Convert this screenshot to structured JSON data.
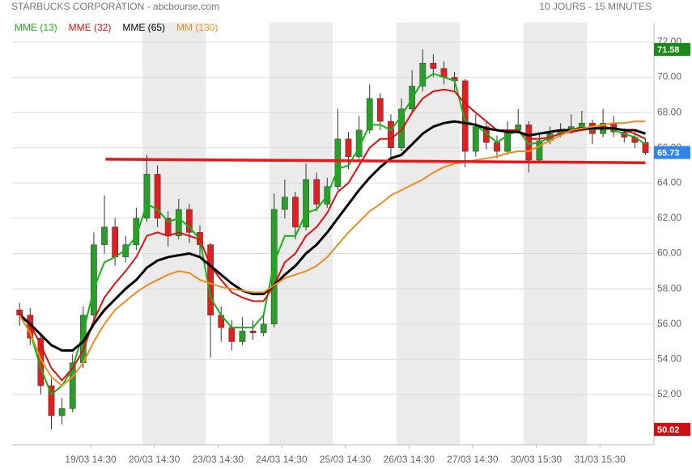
{
  "chart_data": {
    "type": "candlestick",
    "title": "STARBUCKS CORPORATION - abcbourse.com",
    "subtitle": "10 JOURS - 15 MINUTES",
    "up_color": "#2a9d2a",
    "down_color": "#e02020",
    "xlim": [
      -0.7,
      59.8
    ],
    "xticks": [
      {
        "value": 6.7,
        "label": "19/03 14:30"
      },
      {
        "value": 12.7,
        "label": "20/03 14:30"
      },
      {
        "value": 18.7,
        "label": "23/03 14:30"
      },
      {
        "value": 24.7,
        "label": "24/03 14:30"
      },
      {
        "value": 30.7,
        "label": "25/03 14:30"
      },
      {
        "value": 36.7,
        "label": "26/03 14:30"
      },
      {
        "value": 42.7,
        "label": "27/03 14:30"
      },
      {
        "value": 48.7,
        "label": "30/03 15:30"
      },
      {
        "value": 54.7,
        "label": "31/03 15:30"
      }
    ],
    "ylim": [
      49.15,
      73.1
    ],
    "yticks": [
      {
        "value": 52,
        "label": "52.00"
      },
      {
        "value": 54,
        "label": "54.00"
      },
      {
        "value": 56,
        "label": "56.00"
      },
      {
        "value": 58,
        "label": "58.00"
      },
      {
        "value": 60,
        "label": "60.00"
      },
      {
        "value": 62,
        "label": "62.00"
      },
      {
        "value": 64,
        "label": "64.00"
      },
      {
        "value": 66,
        "label": "66.00"
      },
      {
        "value": 68,
        "label": "68.00"
      },
      {
        "value": 70,
        "label": "70.00"
      },
      {
        "value": 72,
        "label": "72.00"
      }
    ],
    "grid": true,
    "open": [
      56.8,
      56.5,
      55.2,
      52.5,
      50.8,
      51.2,
      53.8,
      56.5,
      60.5,
      61.5,
      59.8,
      60.5,
      62.0,
      64.5,
      62.0,
      61.0,
      62.5,
      61.2,
      60.5,
      56.5,
      55.8,
      55.0,
      55.6,
      55.5,
      56.0,
      62.5,
      63.2,
      61.5,
      64.2,
      62.8,
      63.8,
      66.5,
      65.5,
      67.0,
      68.8,
      67.5,
      66.0,
      68.2,
      69.5,
      70.8,
      70.5,
      70.0,
      69.8,
      65.8,
      67.2,
      66.3,
      65.8,
      67.0,
      67.3,
      65.3,
      66.4,
      66.8,
      67.0,
      67.2,
      67.4,
      66.8,
      67.4,
      66.9,
      66.6,
      66.3
    ],
    "high": [
      57.2,
      56.9,
      55.5,
      52.9,
      51.8,
      54.3,
      57.0,
      61.2,
      63.3,
      62.0,
      61.0,
      62.6,
      65.6,
      65.0,
      62.4,
      63.1,
      62.8,
      61.6,
      60.6,
      57.0,
      56.2,
      56.4,
      56.2,
      56.6,
      63.4,
      64.2,
      63.5,
      65.1,
      64.6,
      64.3,
      68.2,
      66.9,
      67.8,
      69.6,
      69.1,
      67.9,
      68.8,
      70.4,
      71.58,
      71.3,
      70.9,
      70.3,
      69.9,
      67.9,
      67.5,
      66.7,
      67.5,
      68.2,
      67.5,
      66.8,
      67.2,
      67.4,
      67.9,
      68.1,
      67.6,
      68.2,
      67.8,
      67.1,
      66.9,
      66.5
    ],
    "low": [
      55.9,
      54.8,
      52.0,
      50.02,
      50.3,
      51.0,
      53.5,
      56.2,
      60.0,
      59.3,
      59.5,
      60.2,
      61.8,
      61.5,
      60.4,
      60.8,
      60.6,
      59.8,
      54.1,
      55.0,
      54.5,
      54.8,
      55.1,
      55.3,
      55.8,
      62.0,
      60.8,
      61.3,
      62.4,
      62.6,
      63.6,
      64.8,
      65.2,
      66.8,
      67.0,
      65.3,
      65.8,
      68.0,
      69.2,
      70.0,
      69.6,
      69.2,
      64.9,
      65.5,
      65.9,
      65.4,
      65.6,
      66.8,
      64.6,
      65.1,
      66.2,
      66.6,
      66.8,
      67.0,
      66.2,
      66.6,
      66.6,
      66.3,
      66.0,
      65.6
    ],
    "close": [
      56.5,
      55.2,
      52.5,
      50.8,
      51.2,
      53.8,
      56.5,
      60.5,
      61.5,
      59.8,
      60.5,
      62.0,
      64.5,
      62.0,
      61.0,
      62.5,
      61.2,
      60.5,
      56.5,
      55.8,
      55.0,
      55.6,
      55.5,
      56.0,
      62.5,
      63.2,
      61.5,
      64.2,
      62.8,
      63.8,
      66.5,
      65.5,
      67.0,
      68.8,
      67.5,
      66.0,
      68.2,
      69.5,
      70.8,
      70.5,
      70.0,
      69.8,
      65.8,
      67.2,
      66.3,
      65.8,
      67.0,
      67.3,
      65.3,
      66.4,
      66.8,
      67.0,
      67.2,
      67.4,
      66.8,
      67.4,
      66.9,
      66.6,
      66.3,
      65.73
    ],
    "series": [
      {
        "name": "MME (13)",
        "color": "#16b316",
        "values": [
          56.5,
          55.5,
          53.5,
          52.0,
          52.5,
          53.5,
          55.5,
          58.0,
          59.5,
          59.8,
          60.2,
          61.0,
          62.8,
          62.5,
          61.8,
          62.0,
          61.5,
          60.8,
          57.5,
          56.5,
          55.8,
          55.8,
          55.8,
          56.5,
          59.5,
          61.0,
          61.0,
          62.3,
          62.5,
          63.3,
          64.8,
          65.0,
          66.0,
          67.3,
          67.3,
          67.0,
          67.8,
          68.8,
          69.8,
          70.2,
          70.0,
          69.8,
          67.5,
          67.3,
          66.8,
          66.3,
          66.7,
          67.0,
          66.2,
          66.3,
          66.6,
          66.8,
          67.0,
          67.2,
          67.0,
          67.2,
          67.0,
          66.8,
          66.6,
          66.2
        ]
      },
      {
        "name": "MME (32)",
        "color": "#e01010",
        "values": [
          56.6,
          56.0,
          54.8,
          53.5,
          52.8,
          53.5,
          54.5,
          56.2,
          57.5,
          58.3,
          59.0,
          59.8,
          61.0,
          61.2,
          61.0,
          61.2,
          61.0,
          60.8,
          59.3,
          58.5,
          57.8,
          57.5,
          57.3,
          57.3,
          58.2,
          59.5,
          60.0,
          61.0,
          61.5,
          62.3,
          63.5,
          64.0,
          65.0,
          66.0,
          66.5,
          66.5,
          67.0,
          68.0,
          68.8,
          69.2,
          69.3,
          69.2,
          68.5,
          68.0,
          67.5,
          67.0,
          67.0,
          67.0,
          66.5,
          66.5,
          66.6,
          66.8,
          66.9,
          67.0,
          67.1,
          67.2,
          67.1,
          67.0,
          66.8,
          66.5
        ]
      },
      {
        "name": "MME (65)",
        "color": "#000000",
        "values": [
          56.5,
          56.0,
          55.4,
          54.8,
          54.5,
          54.5,
          55.0,
          56.0,
          56.8,
          57.4,
          58.0,
          58.5,
          59.2,
          59.6,
          59.8,
          59.9,
          60.0,
          59.8,
          59.3,
          58.8,
          58.3,
          57.9,
          57.7,
          57.7,
          58.2,
          58.8,
          59.3,
          60.0,
          60.5,
          61.2,
          62.0,
          62.8,
          63.6,
          64.3,
          64.9,
          65.4,
          65.6,
          66.2,
          66.8,
          67.2,
          67.4,
          67.5,
          67.4,
          67.3,
          67.1,
          67.0,
          66.9,
          66.9,
          66.7,
          66.8,
          66.9,
          67.0,
          67.0,
          67.1,
          67.1,
          67.1,
          67.1,
          67.0,
          67.0,
          66.8
        ]
      },
      {
        "name": "MM (130)",
        "color": "#f08c1e",
        "values": [
          56.5,
          55.5,
          54.0,
          53.0,
          52.5,
          53.0,
          53.8,
          55.0,
          56.0,
          56.8,
          57.3,
          57.8,
          58.2,
          58.5,
          58.8,
          59.0,
          58.9,
          58.5,
          58.3,
          58.1,
          58.0,
          57.9,
          57.8,
          57.8,
          58.2,
          58.6,
          58.8,
          59.0,
          59.3,
          59.8,
          60.5,
          61.2,
          61.8,
          62.4,
          62.8,
          63.3,
          63.6,
          63.9,
          64.2,
          64.6,
          64.9,
          65.1,
          65.2,
          65.3,
          65.4,
          65.5,
          65.7,
          65.8,
          65.8,
          66.1,
          66.4,
          66.7,
          67.0,
          67.1,
          67.2,
          67.3,
          67.4,
          67.4,
          67.5,
          67.5
        ]
      }
    ],
    "trendline": {
      "x": [
        8.1,
        59.0
      ],
      "y": [
        65.35,
        65.15
      ],
      "color": "#e81818"
    },
    "price_labels": [
      {
        "value": 71.58,
        "color": "#178a17"
      },
      {
        "value": 65.73,
        "color": "#2f86e8"
      },
      {
        "value": 50.02,
        "color": "#d01010"
      }
    ]
  }
}
